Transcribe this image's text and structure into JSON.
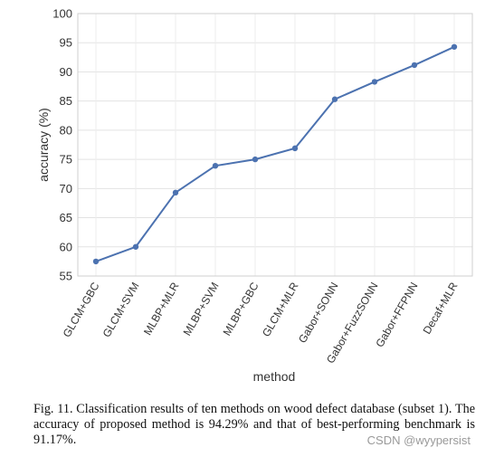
{
  "chart_data": {
    "type": "line",
    "xlabel": "method",
    "ylabel": "accuracy (%)",
    "ylim": [
      55,
      100
    ],
    "yticks": [
      55,
      60,
      65,
      70,
      75,
      80,
      85,
      90,
      95,
      100
    ],
    "grid": true,
    "categories": [
      "GLCM+GBC",
      "GLCM+SVM",
      "MLBP+MLR",
      "MLBP+SVM",
      "MLBP+GBC",
      "GLCM+MLR",
      "Gabor+SONN",
      "Gabor+FuzzSONN",
      "Gabor+FFPNN",
      "Decaf+MLR"
    ],
    "series": [
      {
        "values": [
          57.5,
          60.0,
          69.3,
          73.9,
          75.0,
          76.9,
          85.3,
          88.3,
          91.17,
          94.29
        ],
        "color": "#4c72b0"
      }
    ]
  },
  "caption": "Fig. 11.   Classification results of ten methods on wood defect database (subset 1). The accuracy of proposed method is 94.29% and that of best-performing benchmark is 91.17%.",
  "watermark": "CSDN @wyypersist"
}
